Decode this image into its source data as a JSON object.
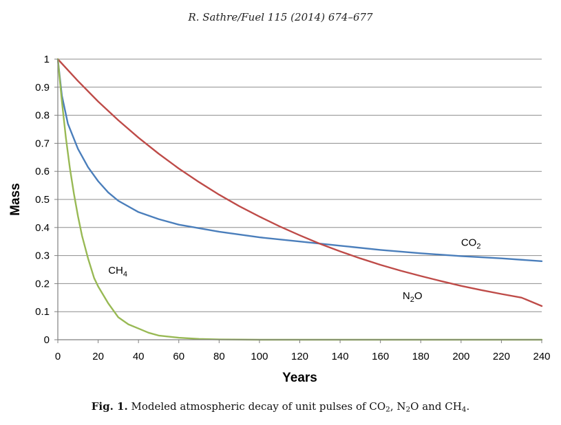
{
  "header": {
    "citation": "R. Sathre/Fuel 115 (2014) 674–677"
  },
  "caption": {
    "label": "Fig. 1.",
    "text_parts": [
      {
        "t": " Modeled atmospheric decay of unit pulses of CO"
      },
      {
        "t": "2",
        "sub": true
      },
      {
        "t": ", N"
      },
      {
        "t": "2",
        "sub": true
      },
      {
        "t": "O and CH"
      },
      {
        "t": "4",
        "sub": true
      },
      {
        "t": "."
      }
    ]
  },
  "chart_data": {
    "type": "line",
    "xlabel": "Years",
    "ylabel": "Mass",
    "xlim": [
      0,
      240
    ],
    "ylim": [
      0,
      1
    ],
    "xticks": [
      0,
      20,
      40,
      60,
      80,
      100,
      120,
      140,
      160,
      180,
      200,
      220,
      240
    ],
    "yticks": [
      0,
      0.1,
      0.2,
      0.3,
      0.4,
      0.5,
      0.6,
      0.7,
      0.8,
      0.9,
      1
    ],
    "ytick_labels": [
      "0",
      "0.1",
      "0.2",
      "0.3",
      "0.4",
      "0.5",
      "0.6",
      "0.7",
      "0.8",
      "0.9",
      "1"
    ],
    "grid": "horizontal",
    "series": [
      {
        "name": "CO2",
        "label_main": "CO",
        "label_sub": "2",
        "color": "#4a7ebb",
        "x": [
          0,
          2,
          5,
          10,
          15,
          20,
          25,
          30,
          40,
          50,
          60,
          80,
          100,
          120,
          140,
          160,
          180,
          200,
          220,
          240
        ],
        "y": [
          1,
          0.87,
          0.77,
          0.68,
          0.615,
          0.565,
          0.525,
          0.495,
          0.455,
          0.43,
          0.41,
          0.385,
          0.365,
          0.35,
          0.335,
          0.32,
          0.308,
          0.298,
          0.29,
          0.28
        ]
      },
      {
        "name": "N2O",
        "label_main": "N",
        "label_sub": "2",
        "label_after": "O",
        "color": "#be4b48",
        "x": [
          0,
          10,
          20,
          30,
          40,
          50,
          60,
          70,
          80,
          90,
          100,
          110,
          120,
          130,
          140,
          150,
          160,
          170,
          180,
          190,
          200,
          210,
          220,
          230,
          240
        ],
        "y": [
          1,
          0.922,
          0.849,
          0.782,
          0.72,
          0.663,
          0.61,
          0.562,
          0.517,
          0.476,
          0.439,
          0.404,
          0.372,
          0.342,
          0.315,
          0.29,
          0.267,
          0.246,
          0.227,
          0.209,
          0.192,
          0.177,
          0.163,
          0.15,
          0.12
        ]
      },
      {
        "name": "CH4",
        "label_main": "CH",
        "label_sub": "4",
        "color": "#98b954",
        "x": [
          0,
          2,
          4,
          6,
          8,
          10,
          12,
          15,
          18,
          20,
          25,
          30,
          35,
          40,
          45,
          50,
          60,
          70,
          80,
          100,
          120,
          160,
          200,
          240
        ],
        "y": [
          1,
          0.85,
          0.72,
          0.61,
          0.52,
          0.44,
          0.37,
          0.29,
          0.22,
          0.19,
          0.13,
          0.08,
          0.055,
          0.04,
          0.025,
          0.015,
          0.007,
          0.003,
          0.001,
          0,
          0,
          0,
          0,
          0
        ]
      }
    ]
  }
}
